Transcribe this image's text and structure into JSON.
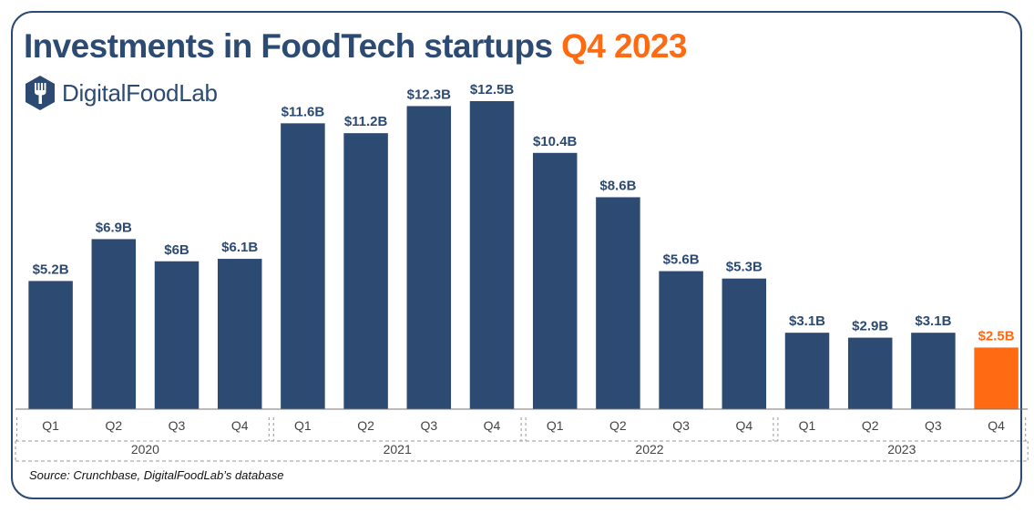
{
  "title": {
    "main": "Investments in FoodTech startups",
    "highlight": "Q4 2023"
  },
  "logo": {
    "text": "DigitalFoodLab",
    "icon": "fork-icon"
  },
  "source": "Source: Crunchbase, DigitalFoodLab’s database",
  "colors": {
    "bar": "#2c4a72",
    "highlight": "#ff6a13",
    "text": "#2c4a72",
    "axis": "#444444"
  },
  "chart_data": {
    "type": "bar",
    "categories": [
      "Q1",
      "Q2",
      "Q3",
      "Q4",
      "Q1",
      "Q2",
      "Q3",
      "Q4",
      "Q1",
      "Q2",
      "Q3",
      "Q4",
      "Q1",
      "Q2",
      "Q3",
      "Q4"
    ],
    "groups": [
      {
        "label": "2020",
        "count": 4
      },
      {
        "label": "2021",
        "count": 4
      },
      {
        "label": "2022",
        "count": 4
      },
      {
        "label": "2023",
        "count": 4
      }
    ],
    "values": [
      5.2,
      6.9,
      6,
      6.1,
      11.6,
      11.2,
      12.3,
      12.5,
      10.4,
      8.6,
      5.6,
      5.3,
      3.1,
      2.9,
      3.1,
      2.5
    ],
    "data_labels": [
      "$5.2B",
      "$6.9B",
      "$6B",
      "$6.1B",
      "$11.6B",
      "$11.2B",
      "$12.3B",
      "$12.5B",
      "$10.4B",
      "$8.6B",
      "$5.6B",
      "$5.3B",
      "$3.1B",
      "$2.9B",
      "$3.1B",
      "$2.5B"
    ],
    "highlight_index": 15,
    "unit": "USD billions",
    "ylim": [
      0,
      12.5
    ],
    "grid": false
  }
}
